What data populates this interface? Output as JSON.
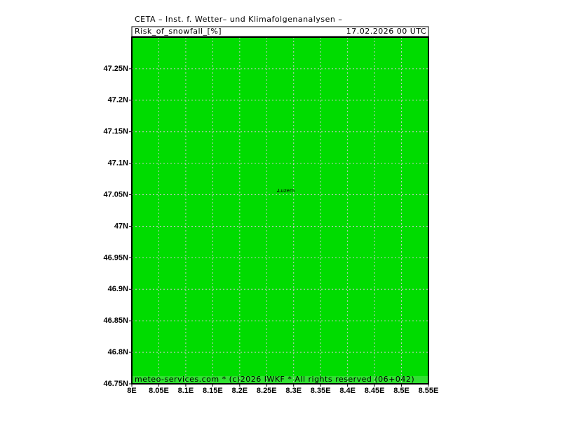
{
  "chart_data": {
    "type": "map",
    "header": "CETA – Inst. f. Wetter– und Klimafolgenanalysen –",
    "title": "Risk_of_snowfall_[%]",
    "valid_time": "17.02.2026 00 UTC",
    "footer": "meteo-services.com * (c)2026 IWKF * All rights reserved (06+042)",
    "fill_color": "#00dc00",
    "footer_color": "#30e030",
    "grid": true,
    "xlim": [
      8,
      8.55
    ],
    "ylim": [
      46.75,
      47.3
    ],
    "xticks": [
      {
        "value": 8,
        "label": "8E"
      },
      {
        "value": 8.05,
        "label": "8.05E"
      },
      {
        "value": 8.1,
        "label": "8.1E"
      },
      {
        "value": 8.15,
        "label": "8.15E"
      },
      {
        "value": 8.2,
        "label": "8.2E"
      },
      {
        "value": 8.25,
        "label": "8.25E"
      },
      {
        "value": 8.3,
        "label": "8.3E"
      },
      {
        "value": 8.35,
        "label": "8.35E"
      },
      {
        "value": 8.4,
        "label": "8.4E"
      },
      {
        "value": 8.45,
        "label": "8.45E"
      },
      {
        "value": 8.5,
        "label": "8.5E"
      },
      {
        "value": 8.55,
        "label": "8.55E"
      }
    ],
    "yticks": [
      {
        "value": 46.75,
        "label": "46.75N"
      },
      {
        "value": 46.8,
        "label": "46.8N"
      },
      {
        "value": 46.85,
        "label": "46.85N"
      },
      {
        "value": 46.9,
        "label": "46.9N"
      },
      {
        "value": 46.95,
        "label": "46.95N"
      },
      {
        "value": 47,
        "label": "47N"
      },
      {
        "value": 47.05,
        "label": "47.05N"
      },
      {
        "value": 47.1,
        "label": "47.1N"
      },
      {
        "value": 47.15,
        "label": "47.15N"
      },
      {
        "value": 47.2,
        "label": "47.2N"
      },
      {
        "value": 47.25,
        "label": "47.25N"
      }
    ],
    "places": [
      {
        "name": "Luzern",
        "lon": 8.27,
        "lat": 47.055
      }
    ]
  }
}
